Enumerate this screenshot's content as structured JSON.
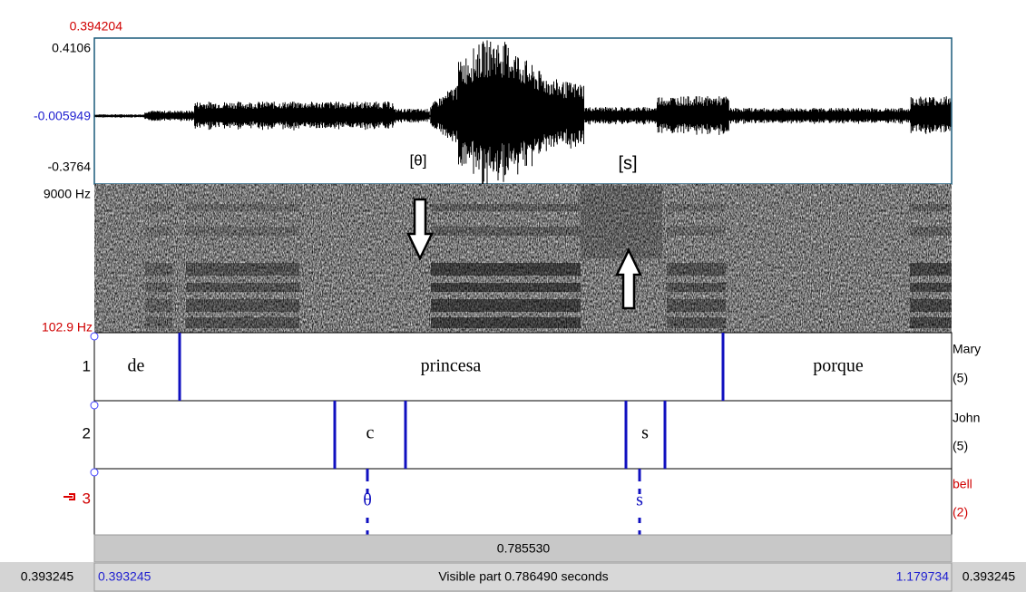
{
  "cursor_top": "0.394204",
  "waveform": {
    "max": "0.4106",
    "zero": "-0.005949",
    "min": "-0.3764",
    "annotations": [
      "[θ]",
      "[s]"
    ]
  },
  "spectrogram": {
    "top": "9000 Hz",
    "bottom": "102.9 Hz"
  },
  "tiers": [
    {
      "number": "1",
      "name": "Mary",
      "count": "(5)",
      "labels": [
        "de",
        "princesa",
        "porque"
      ]
    },
    {
      "number": "2",
      "name": "John",
      "count": "(5)",
      "labels": [
        "c",
        "s"
      ]
    },
    {
      "number": "3",
      "name": "bell",
      "count": "(2)",
      "labels": [
        "θ",
        "s"
      ]
    }
  ],
  "selection": "0.785530",
  "footer": {
    "left": "0.393245",
    "start": "0.393245",
    "visible": "Visible part 0.786490 seconds",
    "end": "1.179734",
    "right": "0.393245"
  }
}
